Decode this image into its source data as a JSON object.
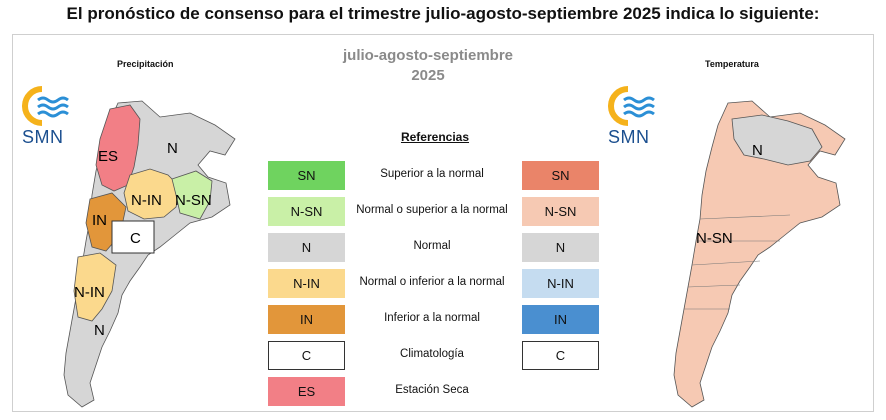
{
  "heading": "El pronóstico de consenso para el trimestre julio-agosto-septiembre 2025 indica lo siguiente:",
  "left_panel_title": "Precipitación",
  "right_panel_title": "Temperatura",
  "center_title_line1": "julio-agosto-septiembre",
  "center_title_line2": "2025",
  "logo_text": "SMN",
  "references_title": "Referencias",
  "legend": [
    {
      "code": "SN",
      "label": "Superior a la normal",
      "precip_color": "#6fd35f",
      "temp_color": "#ea8469",
      "temp_code": "SN"
    },
    {
      "code": "N-SN",
      "label": "Normal o superior a la normal",
      "precip_color": "#c9f0a7",
      "temp_color": "#f6c9b3",
      "temp_code": "N-SN"
    },
    {
      "code": "N",
      "label": "Normal",
      "precip_color": "#d6d6d6",
      "temp_color": "#d6d6d6",
      "temp_code": "N"
    },
    {
      "code": "N-IN",
      "label": "Normal o inferior a la normal",
      "precip_color": "#fbd98d",
      "temp_color": "#c5dcf0",
      "temp_code": "N-IN"
    },
    {
      "code": "IN",
      "label": "Inferior a la normal",
      "precip_color": "#e2963a",
      "temp_color": "#4a8fd0",
      "temp_code": "IN"
    },
    {
      "code": "C",
      "label": "Climatología",
      "precip_color": "#ffffff",
      "temp_color": "#ffffff",
      "temp_code": "C"
    },
    {
      "code": "ES",
      "label": "Estación Seca",
      "precip_color": "#f27f86"
    }
  ],
  "precip_map_labels": {
    "es": "ES",
    "n_north": "N",
    "n_in_center": "N-IN",
    "n_sn_east": "N-SN",
    "in_west": "IN",
    "c_center": "C",
    "n_in_south": "N-IN",
    "n_south": "N"
  },
  "temp_map_labels": {
    "n_north": "N",
    "n_sn_center": "N-SN"
  }
}
